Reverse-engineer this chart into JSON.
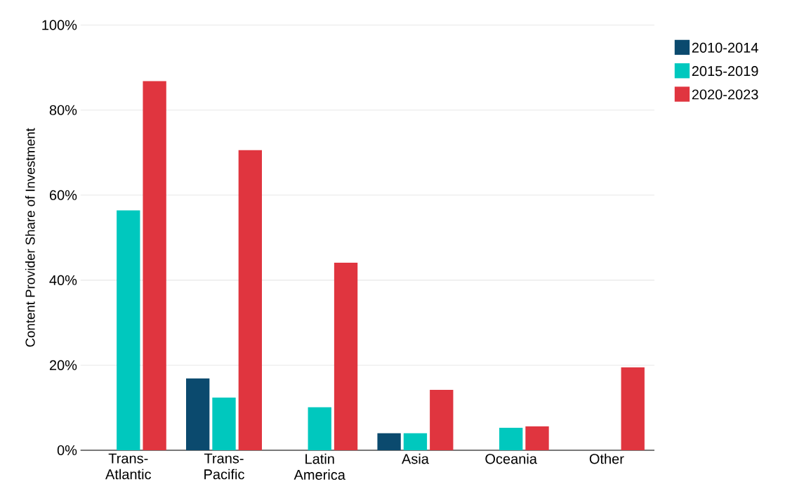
{
  "chart_data": {
    "type": "bar",
    "ylabel": "Content Provider Share of Investment",
    "categories": [
      "Trans-Atlantic",
      "Trans-Pacific",
      "Latin America",
      "Asia",
      "Oceania",
      "Other"
    ],
    "series": [
      {
        "name": "2010-2014",
        "color": "#0b4a6e",
        "values": [
          null,
          16.9,
          null,
          4,
          null,
          null
        ]
      },
      {
        "name": "2015-2019",
        "color": "#00c8be",
        "values": [
          56.4,
          12.4,
          10.1,
          4,
          5.3,
          null
        ]
      },
      {
        "name": "2020-2023",
        "color": "#e0353f",
        "values": [
          86.8,
          70.6,
          44.1,
          14.2,
          5.6,
          19.5
        ]
      }
    ],
    "ylim": [
      0,
      100
    ],
    "yticks": [
      {
        "value": 0,
        "label": "0%"
      },
      {
        "value": 20,
        "label": "20%"
      },
      {
        "value": 40,
        "label": "40%"
      },
      {
        "value": 60,
        "label": "60%"
      },
      {
        "value": 80,
        "label": "80%"
      },
      {
        "value": 100,
        "label": "100%"
      }
    ],
    "grid": "y",
    "legend": "top right"
  }
}
